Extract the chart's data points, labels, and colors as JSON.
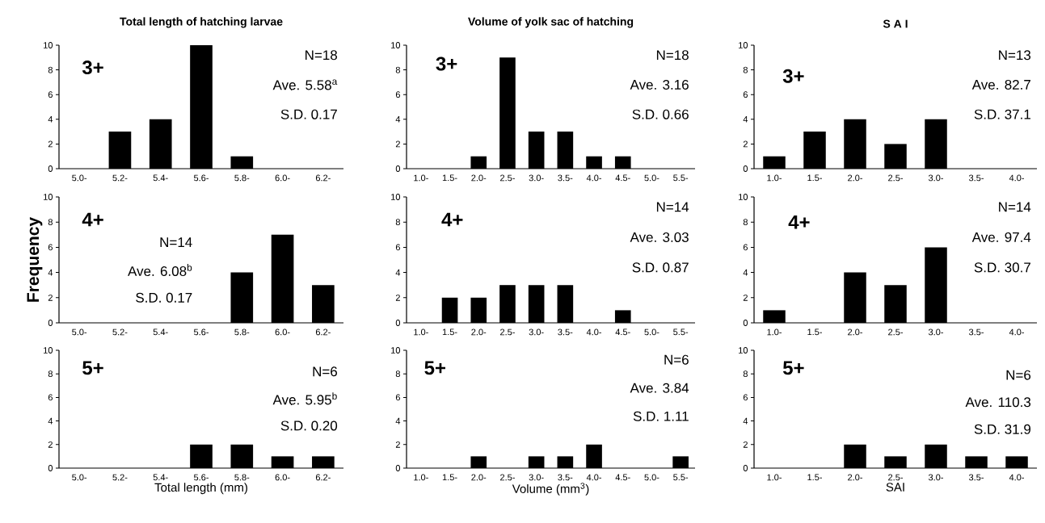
{
  "chart_data": [
    {
      "type": "bar",
      "title": "Total length of hatching larvae",
      "categories": [
        "5.0-",
        "5.2-",
        "5.4-",
        "5.6-",
        "5.8-",
        "6.0-",
        "6.2-"
      ],
      "values": [
        0,
        3,
        4,
        10,
        1,
        0,
        0
      ],
      "color": "#000000",
      "ylim": [
        0,
        10
      ],
      "yticks": [
        0,
        2,
        4,
        6,
        8,
        10
      ],
      "annotations": [
        "3+",
        "N=18",
        "Ave. 5.58$^{a}$",
        "S.D.   0.17"
      ]
    },
    {
      "type": "bar",
      "title": "Volume of yolk sac of hatching",
      "categories": [
        "1.0-",
        "1.5-",
        "2.0-",
        "2.5-",
        "3.0-",
        "3.5-",
        "4.0-",
        "4.5-",
        "5.0-",
        "5.5-"
      ],
      "values": [
        0,
        0,
        1,
        9,
        3,
        3,
        1,
        1,
        0,
        0
      ],
      "color": "#000000",
      "ylim": [
        0,
        10
      ],
      "yticks": [
        0,
        2,
        4,
        6,
        8,
        10
      ],
      "annotations": [
        "3+",
        "N=18",
        "Ave. 3.16",
        "S.D.   0.66"
      ]
    },
    {
      "type": "bar",
      "title": "S A I",
      "categories": [
        "1.0-",
        "1.5-",
        "2.0-",
        "2.5-",
        "3.0-",
        "3.5-",
        "4.0-"
      ],
      "values": [
        1,
        3,
        4,
        2,
        4,
        0,
        0
      ],
      "color": "#000000",
      "ylim": [
        0,
        10
      ],
      "yticks": [
        0,
        2,
        4,
        6,
        8,
        10
      ],
      "annotations": [
        "3+",
        "N=13",
        "Ave. 82.7",
        "S.D.   37.1"
      ]
    },
    {
      "type": "bar",
      "ylabel": "Frequency",
      "categories": [
        "5.0-",
        "5.2-",
        "5.4-",
        "5.6-",
        "5.8-",
        "6.0-",
        "6.2-"
      ],
      "values": [
        0,
        0,
        0,
        0,
        4,
        7,
        3
      ],
      "color": "#000000",
      "ylim": [
        0,
        10
      ],
      "yticks": [
        0,
        2,
        4,
        6,
        8,
        10
      ],
      "annotations": [
        "4+",
        "N=14",
        "Ave. 6.08$^{b}$",
        "S.D.   0.17"
      ]
    },
    {
      "type": "bar",
      "categories": [
        "1.0-",
        "1.5-",
        "2.0-",
        "2.5-",
        "3.0-",
        "3.5-",
        "4.0-",
        "4.5-",
        "5.0-",
        "5.5-"
      ],
      "values": [
        0,
        2,
        2,
        3,
        3,
        3,
        0,
        1,
        0,
        0
      ],
      "color": "#000000",
      "ylim": [
        0,
        10
      ],
      "yticks": [
        0,
        2,
        4,
        6,
        8,
        10
      ],
      "annotations": [
        "4+",
        "N=14",
        "Ave. 3.03",
        "S.D.   0.87"
      ]
    },
    {
      "type": "bar",
      "categories": [
        "1.0-",
        "1.5-",
        "2.0-",
        "2.5-",
        "3.0-",
        "3.5-",
        "4.0-"
      ],
      "values": [
        1,
        0,
        4,
        3,
        6,
        0,
        0
      ],
      "color": "#000000",
      "ylim": [
        0,
        10
      ],
      "yticks": [
        0,
        2,
        4,
        6,
        8,
        10
      ],
      "annotations": [
        "4+",
        "N=14",
        "Ave. 97.4",
        "S.D.   30.7"
      ]
    },
    {
      "type": "bar",
      "xlabel": "Total length (mm)",
      "categories": [
        "5.0-",
        "5.2-",
        "5.4-",
        "5.6-",
        "5.8-",
        "6.0-",
        "6.2-"
      ],
      "values": [
        0,
        0,
        0,
        2,
        2,
        1,
        1
      ],
      "color": "#000000",
      "ylim": [
        0,
        10
      ],
      "yticks": [
        0,
        2,
        4,
        6,
        8,
        10
      ],
      "annotations": [
        "5+",
        "N=6",
        "Ave. 5.95$^{b}$",
        "S.D.   0.20"
      ]
    },
    {
      "type": "bar",
      "xlabel": "Volume (mm$^{3}$)",
      "categories": [
        "1.0-",
        "1.5-",
        "2.0-",
        "2.5-",
        "3.0-",
        "3.5-",
        "4.0-",
        "4.5-",
        "5.0-",
        "5.5-"
      ],
      "values": [
        0,
        0,
        1,
        0,
        1,
        1,
        2,
        0,
        0,
        1
      ],
      "color": "#000000",
      "ylim": [
        0,
        10
      ],
      "yticks": [
        0,
        2,
        4,
        6,
        8,
        10
      ],
      "annotations": [
        "5+",
        "N=6",
        "Ave. 3.84",
        "S.D.   1.11"
      ]
    },
    {
      "type": "bar",
      "xlabel": "SAI",
      "categories": [
        "1.0-",
        "1.5-",
        "2.0-",
        "2.5-",
        "3.0-",
        "3.5-",
        "4.0-"
      ],
      "values": [
        0,
        0,
        2,
        1,
        2,
        1,
        1
      ],
      "color": "#000000",
      "ylim": [
        0,
        10
      ],
      "yticks": [
        0,
        2,
        4,
        6,
        8,
        10
      ],
      "annotations": [
        "5+",
        "N=6",
        "Ave. 110.3",
        "S.D.   31.9"
      ]
    }
  ]
}
